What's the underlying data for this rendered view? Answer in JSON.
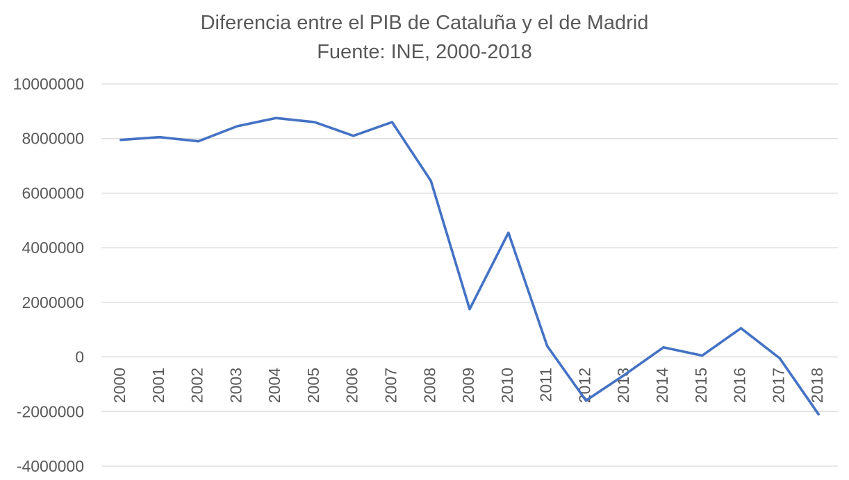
{
  "chart_data": {
    "type": "line",
    "title": "Diferencia entre el PIB de Cataluña y el de Madrid",
    "subtitle": "Fuente: INE, 2000-2018",
    "xlabel": "",
    "ylabel": "",
    "categories": [
      "2000",
      "2001",
      "2002",
      "2003",
      "2004",
      "2005",
      "2006",
      "2007",
      "2008",
      "2009",
      "2010",
      "2011",
      "2012",
      "2013",
      "2014",
      "2015",
      "2016",
      "2017",
      "2018"
    ],
    "series": [
      {
        "values": [
          7950000,
          8050000,
          7900000,
          8450000,
          8750000,
          8600000,
          8100000,
          8600000,
          6450000,
          1750000,
          4550000,
          400000,
          -1600000,
          -650000,
          350000,
          50000,
          1050000,
          -50000,
          -2100000
        ],
        "color": "#4472c4"
      }
    ],
    "ylim": [
      -4000000,
      10000000
    ],
    "yticks": [
      "10000000",
      "8000000",
      "6000000",
      "4000000",
      "2000000",
      "0",
      "-2000000",
      "-4000000"
    ],
    "ytick_values": [
      10000000,
      8000000,
      6000000,
      4000000,
      2000000,
      0,
      -2000000,
      -4000000
    ],
    "grid": true,
    "legend": "none"
  }
}
